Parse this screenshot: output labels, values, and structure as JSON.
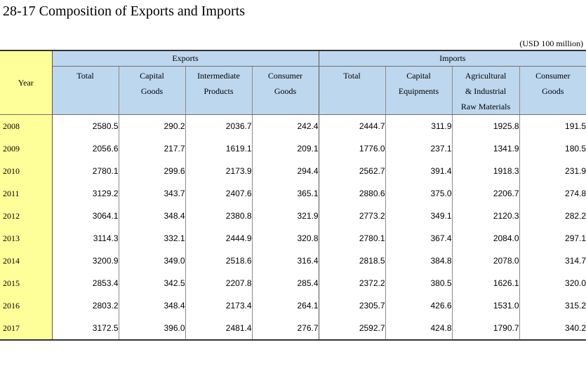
{
  "title": "28-17  Composition of Exports and Imports",
  "unit": "(USD 100 million)",
  "header": {
    "year": "Year",
    "exports": "Exports",
    "imports": "Imports",
    "export_cols": [
      [
        "Total"
      ],
      [
        "Capital",
        "Goods"
      ],
      [
        "Intermediate",
        "Products"
      ],
      [
        "Consumer",
        "Goods"
      ]
    ],
    "import_cols": [
      [
        "Total"
      ],
      [
        "Capital",
        "Equipments"
      ],
      [
        "Agricultural",
        "& Industrial",
        "Raw Materials"
      ],
      [
        "Consumer",
        "Goods"
      ]
    ]
  },
  "rows": [
    {
      "year": "2008",
      "values": [
        "2580.5",
        "290.2",
        "2036.7",
        "242.4",
        "2444.7",
        "311.9",
        "1925.8",
        "191.5"
      ]
    },
    {
      "year": "2009",
      "values": [
        "2056.6",
        "217.7",
        "1619.1",
        "209.1",
        "1776.0",
        "237.1",
        "1341.9",
        "180.5"
      ]
    },
    {
      "year": "2010",
      "values": [
        "2780.1",
        "299.6",
        "2173.9",
        "294.4",
        "2562.7",
        "391.4",
        "1918.3",
        "231.9"
      ]
    },
    {
      "year": "2011",
      "values": [
        "3129.2",
        "343.7",
        "2407.6",
        "365.1",
        "2880.6",
        "375.0",
        "2206.7",
        "274.8"
      ]
    },
    {
      "year": "2012",
      "values": [
        "3064.1",
        "348.4",
        "2380.8",
        "321.9",
        "2773.2",
        "349.1",
        "2120.3",
        "282.2"
      ]
    },
    {
      "year": "2013",
      "values": [
        "3114.3",
        "332.1",
        "2444.9",
        "320.8",
        "2780.1",
        "367.4",
        "2084.0",
        "297.1"
      ]
    },
    {
      "year": "2014",
      "values": [
        "3200.9",
        "349.0",
        "2518.6",
        "316.4",
        "2818.5",
        "384.8",
        "2078.0",
        "314.7"
      ]
    },
    {
      "year": "2015",
      "values": [
        "2853.4",
        "342.5",
        "2207.8",
        "285.4",
        "2372.2",
        "380.5",
        "1626.1",
        "320.0"
      ]
    },
    {
      "year": "2016",
      "values": [
        "2803.2",
        "348.4",
        "2173.4",
        "264.1",
        "2305.7",
        "426.6",
        "1531.0",
        "315.2"
      ]
    },
    {
      "year": "2017",
      "values": [
        "3172.5",
        "396.0",
        "2481.4",
        "276.7",
        "2592.7",
        "424.8",
        "1790.7",
        "340.2"
      ]
    }
  ],
  "colors": {
    "header_bg": "#bdd7ee",
    "year_bg": "#ffff99"
  }
}
